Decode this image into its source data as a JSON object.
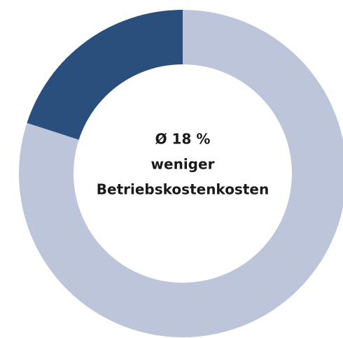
{
  "chart_data": {
    "type": "pie",
    "values": [
      20,
      80
    ],
    "colors": [
      "#2a4f7c",
      "#bcc5d9"
    ],
    "donut": true,
    "direction": "counterclockwise",
    "center_text": [
      "Ø 18 %",
      "weniger",
      "Betriebskostenkosten"
    ]
  }
}
